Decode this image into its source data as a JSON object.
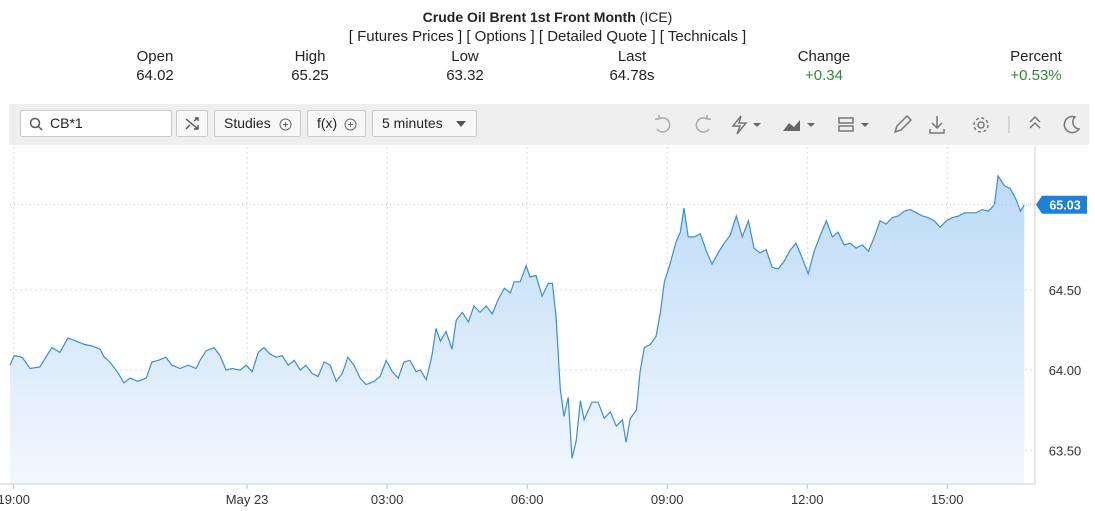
{
  "header": {
    "title": "Crude Oil Brent 1st Front Month",
    "exchange": "(ICE)",
    "links": [
      "[ Futures Prices ]",
      "[ Options ]",
      "[ Detailed Quote ]",
      "[ Technicals ]"
    ],
    "quote": [
      {
        "label": "Open",
        "value": "64.02"
      },
      {
        "label": "High",
        "value": "65.25"
      },
      {
        "label": "Low",
        "value": "63.32"
      },
      {
        "label": "Last",
        "value": "64.78s"
      },
      {
        "label": "Change",
        "value": "+0.34"
      },
      {
        "label": "Percent",
        "value": "+0.53%"
      }
    ]
  },
  "toolbar": {
    "symbol": "CB*1",
    "studies": "Studies",
    "function": "f(x)",
    "interval": "5 minutes"
  },
  "chart_data": {
    "type": "line",
    "color": "#3a8ed8",
    "grid": true,
    "last_value": 65.03,
    "xlim": [
      -5.08,
      16.88
    ],
    "xticks": [
      {
        "value": -5,
        "label": "19:00"
      },
      {
        "value": 0,
        "label": "May 23"
      },
      {
        "value": 3,
        "label": "03:00"
      },
      {
        "value": 6,
        "label": "06:00"
      },
      {
        "value": 9,
        "label": "09:00"
      },
      {
        "value": 12,
        "label": "12:00"
      },
      {
        "value": 15,
        "label": "15:00"
      }
    ],
    "ylim": [
      63.29,
      65.39
    ],
    "yticks": [
      {
        "value": 63.5,
        "label": "63.50"
      },
      {
        "value": 64,
        "label": "64.00"
      },
      {
        "value": 64.5,
        "label": "64.50"
      }
    ],
    "x": [
      -5.08,
      -4.99,
      -4.82,
      -4.65,
      -4.44,
      -4.31,
      -4.18,
      -4.01,
      -3.84,
      -3.66,
      -3.49,
      -3.32,
      -3.15,
      -3.06,
      -2.94,
      -2.76,
      -2.64,
      -2.51,
      -2.34,
      -2.16,
      -2.04,
      -1.91,
      -1.74,
      -1.61,
      -1.44,
      -1.26,
      -1.09,
      -1.01,
      -0.88,
      -0.71,
      -0.58,
      -0.45,
      -0.32,
      -0.15,
      -0.02,
      0.11,
      0.24,
      0.36,
      0.49,
      0.62,
      0.75,
      0.88,
      1.01,
      1.14,
      1.26,
      1.39,
      1.52,
      1.65,
      1.78,
      1.91,
      2.04,
      2.16,
      2.29,
      2.42,
      2.55,
      2.72,
      2.85,
      2.98,
      3.11,
      3.24,
      3.36,
      3.49,
      3.62,
      3.71,
      3.84,
      3.96,
      4.05,
      4.14,
      4.26,
      4.39,
      4.48,
      4.61,
      4.74,
      4.86,
      4.99,
      5.12,
      5.25,
      5.38,
      5.51,
      5.64,
      5.72,
      5.85,
      5.98,
      6.06,
      6.19,
      6.32,
      6.45,
      6.54,
      6.62,
      6.71,
      6.79,
      6.88,
      6.96,
      7.05,
      7.14,
      7.22,
      7.31,
      7.39,
      7.52,
      7.65,
      7.78,
      7.91,
      8.04,
      8.12,
      8.21,
      8.34,
      8.42,
      8.51,
      8.64,
      8.76,
      8.85,
      8.94,
      9.06,
      9.19,
      9.28,
      9.36,
      9.45,
      9.58,
      9.71,
      9.84,
      9.96,
      10.09,
      10.22,
      10.35,
      10.48,
      10.61,
      10.74,
      10.86,
      10.99,
      11.12,
      11.25,
      11.38,
      11.51,
      11.64,
      11.76,
      11.89,
      12.02,
      12.15,
      12.28,
      12.41,
      12.54,
      12.66,
      12.79,
      12.92,
      13.05,
      13.18,
      13.31,
      13.44,
      13.56,
      13.69,
      13.82,
      13.95,
      14.08,
      14.21,
      14.34,
      14.47,
      14.59,
      14.72,
      14.85,
      14.98,
      15.11,
      15.24,
      15.37,
      15.49,
      15.62,
      15.75,
      15.88,
      16.01,
      16.09,
      16.22,
      16.35,
      16.48,
      16.57,
      16.65
    ],
    "values": [
      64.03,
      64.09,
      64.08,
      64.01,
      64.02,
      64.08,
      64.14,
      64.11,
      64.2,
      64.18,
      64.16,
      64.15,
      64.13,
      64.08,
      64.05,
      63.98,
      63.92,
      63.95,
      63.93,
      63.95,
      64.05,
      64.06,
      64.08,
      64.03,
      64.01,
      64.03,
      64.01,
      64.06,
      64.12,
      64.14,
      64.09,
      64,
      64.01,
      64,
      64.03,
      63.99,
      64.11,
      64.14,
      64.1,
      64.08,
      64.09,
      64.03,
      64.06,
      64,
      64.03,
      63.98,
      63.96,
      64.05,
      64.03,
      63.93,
      63.98,
      64.08,
      64.03,
      63.95,
      63.91,
      63.93,
      63.96,
      64.06,
      63.99,
      63.95,
      64.05,
      64.06,
      63.99,
      64,
      63.94,
      64.09,
      64.26,
      64.18,
      64.24,
      64.13,
      64.31,
      64.36,
      64.3,
      64.4,
      64.36,
      64.4,
      64.35,
      64.44,
      64.51,
      64.48,
      64.55,
      64.55,
      64.65,
      64.58,
      64.59,
      64.46,
      64.54,
      64.54,
      64.33,
      63.88,
      63.71,
      63.83,
      63.45,
      63.56,
      63.81,
      63.69,
      63.75,
      63.8,
      63.8,
      63.7,
      63.74,
      63.65,
      63.69,
      63.55,
      63.7,
      63.75,
      63.99,
      64.14,
      64.16,
      64.21,
      64.35,
      64.55,
      64.66,
      64.8,
      64.86,
      65.01,
      64.83,
      64.83,
      64.85,
      64.74,
      64.66,
      64.73,
      64.79,
      64.84,
      64.96,
      64.83,
      64.93,
      64.76,
      64.73,
      64.75,
      64.64,
      64.63,
      64.68,
      64.75,
      64.79,
      64.7,
      64.6,
      64.74,
      64.84,
      64.93,
      64.83,
      64.86,
      64.78,
      64.79,
      64.76,
      64.78,
      64.74,
      64.83,
      64.93,
      64.91,
      64.95,
      64.96,
      64.99,
      65,
      64.98,
      64.96,
      64.95,
      64.93,
      64.89,
      64.93,
      64.95,
      64.96,
      64.98,
      64.98,
      64.98,
      65,
      64.99,
      65.03,
      65.21,
      65.15,
      65.13,
      65.06,
      64.99,
      65.03
    ]
  }
}
